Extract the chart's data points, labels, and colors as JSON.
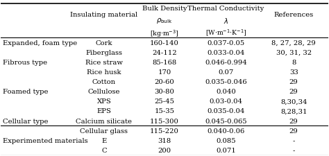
{
  "rows": [
    [
      "Expanded, foam type",
      "Cork",
      "160-140",
      "0.037-0.05",
      "8, 27, 28, 29"
    ],
    [
      "",
      "Fiberglass",
      "24-112",
      "0.033-0.04",
      "30, 31, 32"
    ],
    [
      "Fibrous type",
      "Rice straw",
      "85-168",
      "0.046-0.994",
      "8"
    ],
    [
      "",
      "Rice husk",
      "170",
      "0.07",
      "33"
    ],
    [
      "",
      "Cotton",
      "20-60",
      "0.035-0.046",
      "29"
    ],
    [
      "Foamed type",
      "Cellulose",
      "30-80",
      "0.040",
      "29"
    ],
    [
      "",
      "XPS",
      "25-45",
      "0.03-0.04",
      "8,30,34"
    ],
    [
      "",
      "EPS",
      "15-35",
      "0.035-0.04",
      "8,28,31"
    ],
    [
      "Cellular type",
      "Calcium silicate",
      "115-300",
      "0.045-0.065",
      "29"
    ],
    [
      "",
      "Cellular glass",
      "115-220",
      "0.040-0.06",
      "29"
    ],
    [
      "Experimented materials",
      "E",
      "318",
      "0.085",
      "-"
    ],
    [
      "",
      "C",
      "200",
      "0.071",
      "-"
    ]
  ],
  "background_color": "#ffffff",
  "font_size": 7.2,
  "header_font_size": 7.2
}
